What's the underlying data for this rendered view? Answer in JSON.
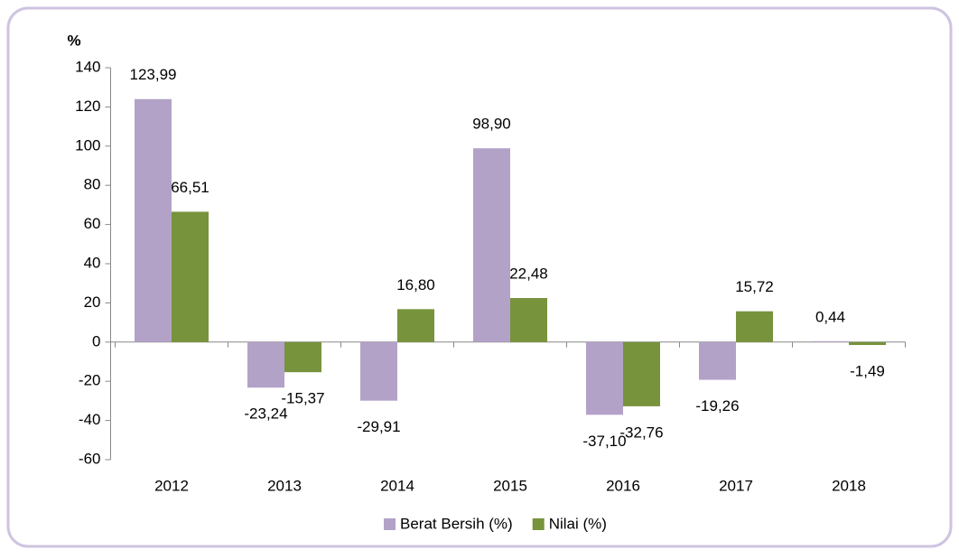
{
  "chart_data": {
    "type": "bar",
    "y_label": "%",
    "categories": [
      "2012",
      "2013",
      "2014",
      "2015",
      "2016",
      "2017",
      "2018"
    ],
    "series": [
      {
        "name": "Berat Bersih (%)",
        "color": "#b3a2c7",
        "values": [
          123.99,
          -23.24,
          -29.91,
          98.9,
          -37.1,
          -19.26,
          0.44
        ],
        "value_labels": [
          "123,99",
          "-23,24",
          "-29,91",
          "98,90",
          "-37,10",
          "-19,26",
          "0,44"
        ]
      },
      {
        "name": "Nilai (%)",
        "color": "#77933c",
        "values": [
          66.51,
          -15.37,
          16.8,
          22.48,
          -32.76,
          15.72,
          -1.49
        ],
        "value_labels": [
          "66,51",
          "-15,37",
          "16,80",
          "22,48",
          "-32,76",
          "15,72",
          "-1,49"
        ]
      }
    ],
    "ylim": [
      -60,
      140
    ],
    "yticks": [
      -60,
      -40,
      -20,
      0,
      20,
      40,
      60,
      80,
      100,
      120,
      140
    ],
    "grid": false,
    "legend": "bottom"
  }
}
